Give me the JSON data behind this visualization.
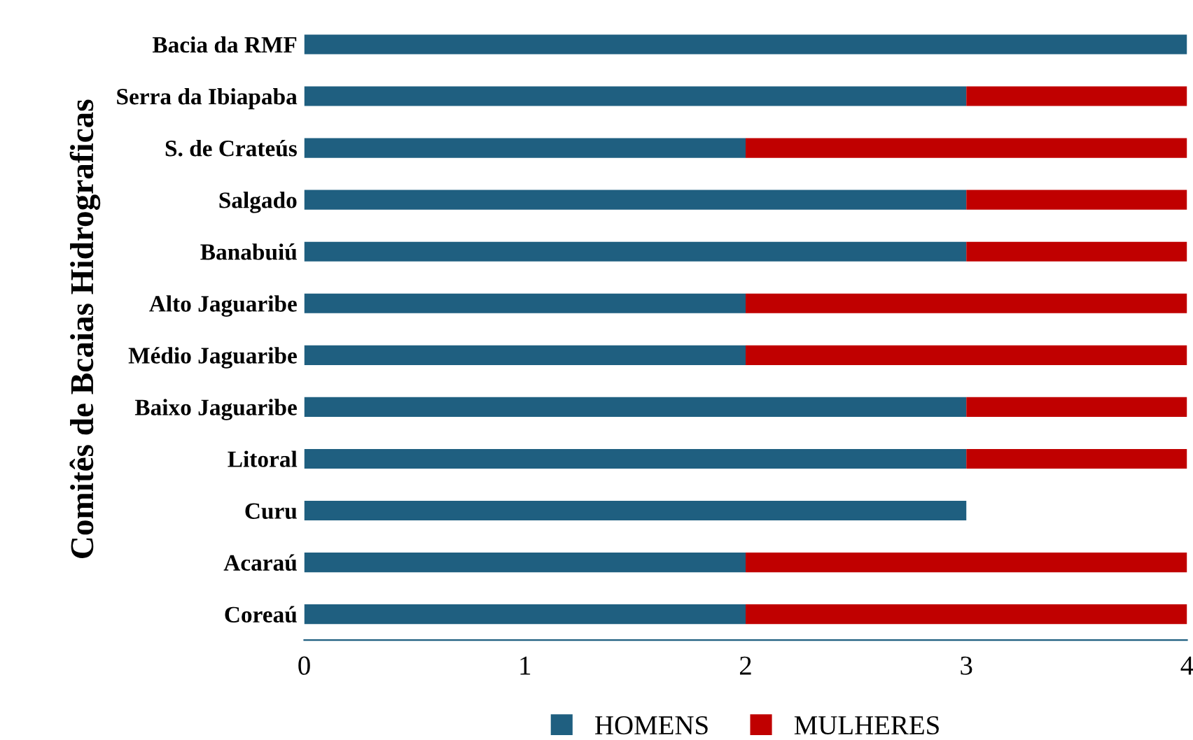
{
  "chart_data": {
    "type": "bar",
    "orientation": "horizontal",
    "stacked": true,
    "ylabel": "Comitês de Bcaias Hidrograficas",
    "categories": [
      "Bacia da RMF",
      "Serra da Ibiapaba",
      "S. de Crateús",
      "Salgado",
      "Banabuiú",
      "Alto Jaguaribe",
      "Médio Jaguaribe",
      "Baixo Jaguaribe",
      "Litoral",
      "Curu",
      "Acaraú",
      "Coreaú"
    ],
    "series": [
      {
        "name": "HOMENS",
        "color": "#1f5f80",
        "values": [
          4,
          3,
          2,
          3,
          3,
          2,
          2,
          3,
          3,
          3,
          2,
          2
        ]
      },
      {
        "name": "MULHERES",
        "color": "#c00000",
        "values": [
          0,
          1,
          2,
          1,
          1,
          2,
          2,
          1,
          1,
          0,
          2,
          2
        ]
      }
    ],
    "xlim": [
      0,
      4
    ],
    "xticks": [
      0,
      1,
      2,
      3,
      4
    ],
    "grid": false,
    "legend": "bottom"
  }
}
